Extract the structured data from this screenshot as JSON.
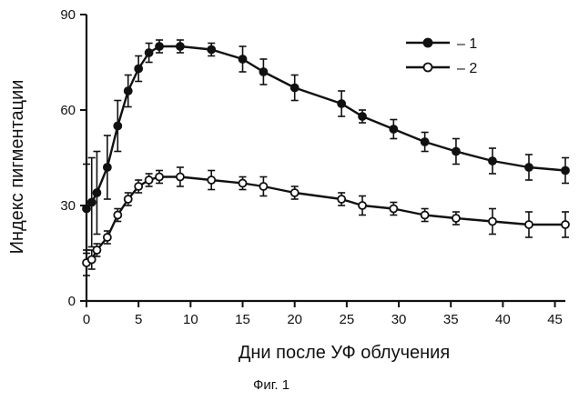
{
  "chart_data": {
    "type": "line",
    "xlabel": "Дни после УФ облучения",
    "ylabel": "Индекс пигментации",
    "caption": "Фиг. 1",
    "xlim": [
      0,
      46
    ],
    "ylim": [
      0,
      90
    ],
    "x_ticks": [
      0,
      5,
      10,
      15,
      20,
      25,
      30,
      35,
      40,
      45
    ],
    "y_ticks": [
      0,
      30,
      60,
      90
    ],
    "grid": false,
    "legend_position": "top-right",
    "series": [
      {
        "name": "– 1",
        "marker": "filled-circle",
        "color": "#111111",
        "points": [
          {
            "x": 0,
            "y": 29,
            "err": 14
          },
          {
            "x": 0.5,
            "y": 31,
            "err": 14
          },
          {
            "x": 1,
            "y": 34,
            "err": 13
          },
          {
            "x": 2,
            "y": 42,
            "err": 10
          },
          {
            "x": 3,
            "y": 55,
            "err": 8
          },
          {
            "x": 4,
            "y": 66,
            "err": 5
          },
          {
            "x": 5,
            "y": 73,
            "err": 4
          },
          {
            "x": 6,
            "y": 78,
            "err": 3
          },
          {
            "x": 7,
            "y": 80,
            "err": 2
          },
          {
            "x": 9,
            "y": 80,
            "err": 2
          },
          {
            "x": 12,
            "y": 79,
            "err": 2
          },
          {
            "x": 15,
            "y": 76,
            "err": 4
          },
          {
            "x": 17,
            "y": 72,
            "err": 4
          },
          {
            "x": 20,
            "y": 67,
            "err": 4
          },
          {
            "x": 24.5,
            "y": 62,
            "err": 4
          },
          {
            "x": 26.5,
            "y": 58,
            "err": 2
          },
          {
            "x": 29.5,
            "y": 54,
            "err": 3
          },
          {
            "x": 32.5,
            "y": 50,
            "err": 3
          },
          {
            "x": 35.5,
            "y": 47,
            "err": 4
          },
          {
            "x": 39,
            "y": 44,
            "err": 4
          },
          {
            "x": 42.5,
            "y": 42,
            "err": 4
          },
          {
            "x": 46,
            "y": 41,
            "err": 4
          }
        ]
      },
      {
        "name": "– 2",
        "marker": "open-circle",
        "color": "#111111",
        "points": [
          {
            "x": 0,
            "y": 12,
            "err": 4
          },
          {
            "x": 0.5,
            "y": 13,
            "err": 3
          },
          {
            "x": 1,
            "y": 16,
            "err": 2
          },
          {
            "x": 2,
            "y": 20,
            "err": 2
          },
          {
            "x": 3,
            "y": 27,
            "err": 2
          },
          {
            "x": 4,
            "y": 32,
            "err": 2
          },
          {
            "x": 5,
            "y": 36,
            "err": 2
          },
          {
            "x": 6,
            "y": 38,
            "err": 2
          },
          {
            "x": 7,
            "y": 39,
            "err": 2
          },
          {
            "x": 9,
            "y": 39,
            "err": 3
          },
          {
            "x": 12,
            "y": 38,
            "err": 3
          },
          {
            "x": 15,
            "y": 37,
            "err": 2
          },
          {
            "x": 17,
            "y": 36,
            "err": 3
          },
          {
            "x": 20,
            "y": 34,
            "err": 2
          },
          {
            "x": 24.5,
            "y": 32,
            "err": 2
          },
          {
            "x": 26.5,
            "y": 30,
            "err": 3
          },
          {
            "x": 29.5,
            "y": 29,
            "err": 2
          },
          {
            "x": 32.5,
            "y": 27,
            "err": 2
          },
          {
            "x": 35.5,
            "y": 26,
            "err": 2
          },
          {
            "x": 39,
            "y": 25,
            "err": 4
          },
          {
            "x": 42.5,
            "y": 24,
            "err": 4
          },
          {
            "x": 46,
            "y": 24,
            "err": 4
          }
        ]
      }
    ]
  }
}
